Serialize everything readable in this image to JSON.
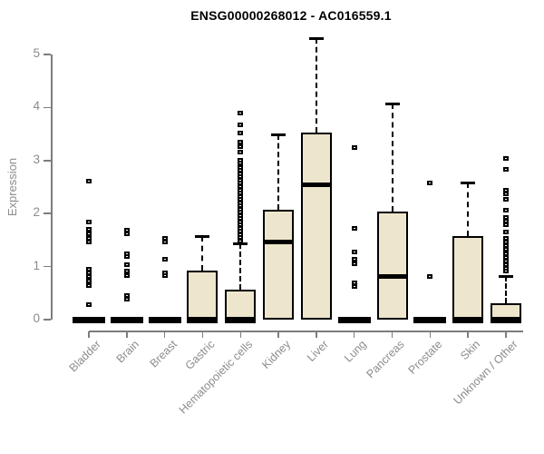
{
  "chart_data": {
    "type": "boxplot",
    "title": "ENSG00000268012 - AC016559.1",
    "ylabel": "Expression",
    "xlabel": "",
    "ylim": [
      0,
      5
    ],
    "yticks": [
      0,
      1,
      2,
      3,
      4,
      5
    ],
    "grid": false,
    "legend": "none",
    "box_fill_color": "#ede6cc",
    "box_border_color": "#000000",
    "axis_color": "#7d7d7d",
    "label_color": "#8c8c8c",
    "title_color": "#000000",
    "categories": [
      "Bladder",
      "Brain",
      "Breast",
      "Gastric",
      "Hematopoietic cells",
      "Kidney",
      "Liver",
      "Lung",
      "Pancreas",
      "Prostate",
      "Skin",
      "Unknown / Other"
    ],
    "series": [
      {
        "label": "Bladder",
        "q1": 0,
        "median": 0,
        "q3": 0,
        "whisker_low": 0,
        "whisker_high": 0,
        "outliers": [
          2.6,
          1.84,
          1.7,
          1.61,
          1.52,
          1.46,
          0.94,
          0.87,
          0.8,
          0.72,
          0.64,
          0.27
        ]
      },
      {
        "label": "Brain",
        "q1": 0,
        "median": 0,
        "q3": 0,
        "whisker_low": 0,
        "whisker_high": 0,
        "outliers": [
          1.68,
          1.61,
          1.24,
          1.18,
          1.02,
          0.9,
          0.82,
          0.44,
          0.37
        ]
      },
      {
        "label": "Breast",
        "q1": 0,
        "median": 0,
        "q3": 0,
        "whisker_low": 0,
        "whisker_high": 0,
        "outliers": [
          1.52,
          1.46,
          1.13,
          0.88,
          0.82
        ]
      },
      {
        "label": "Gastric",
        "q1": 0,
        "median": 0,
        "q3": 0.93,
        "whisker_low": 0,
        "whisker_high": 1.57,
        "outliers": []
      },
      {
        "label": "Hematopoietic cells",
        "q1": 0,
        "median": 0,
        "q3": 0.56,
        "whisker_low": 0,
        "whisker_high": 1.44,
        "outliers": [
          3.89,
          3.66,
          3.51,
          3.34,
          3.26,
          3.15,
          3.0,
          2.95,
          2.86,
          2.8,
          2.74,
          2.68,
          2.62,
          2.56,
          2.5,
          2.44,
          2.38,
          2.32,
          2.26,
          2.2,
          2.14,
          2.08,
          2.02,
          1.96,
          1.9,
          1.84,
          1.78,
          1.72,
          1.66,
          1.6,
          1.54,
          1.48
        ]
      },
      {
        "label": "Kidney",
        "q1": 0,
        "median": 1.46,
        "q3": 2.08,
        "whisker_low": 0,
        "whisker_high": 3.5,
        "outliers": []
      },
      {
        "label": "Liver",
        "q1": 0,
        "median": 2.54,
        "q3": 3.53,
        "whisker_low": 0,
        "whisker_high": 5.3,
        "outliers": []
      },
      {
        "label": "Lung",
        "q1": 0,
        "median": 0,
        "q3": 0,
        "whisker_low": 0,
        "whisker_high": 0,
        "outliers": [
          3.24,
          1.71,
          1.27,
          1.13,
          1.04,
          0.69,
          0.61
        ]
      },
      {
        "label": "Pancreas",
        "q1": 0,
        "median": 0.81,
        "q3": 2.03,
        "whisker_low": 0,
        "whisker_high": 4.07,
        "outliers": []
      },
      {
        "label": "Prostate",
        "q1": 0,
        "median": 0,
        "q3": 0,
        "whisker_low": 0,
        "whisker_high": 0,
        "outliers": [
          2.57,
          0.81
        ]
      },
      {
        "label": "Skin",
        "q1": 0,
        "median": 0,
        "q3": 1.57,
        "whisker_low": 0,
        "whisker_high": 2.58,
        "outliers": []
      },
      {
        "label": "Unknown / Other",
        "q1": 0,
        "median": 0,
        "q3": 0.31,
        "whisker_low": 0,
        "whisker_high": 0.82,
        "outliers": [
          3.03,
          2.83,
          2.43,
          2.37,
          2.26,
          2.06,
          1.92,
          1.85,
          1.78,
          1.65,
          1.52,
          1.45,
          1.38,
          1.31,
          1.24,
          1.17,
          1.1,
          1.03,
          0.96,
          0.9
        ]
      }
    ]
  }
}
